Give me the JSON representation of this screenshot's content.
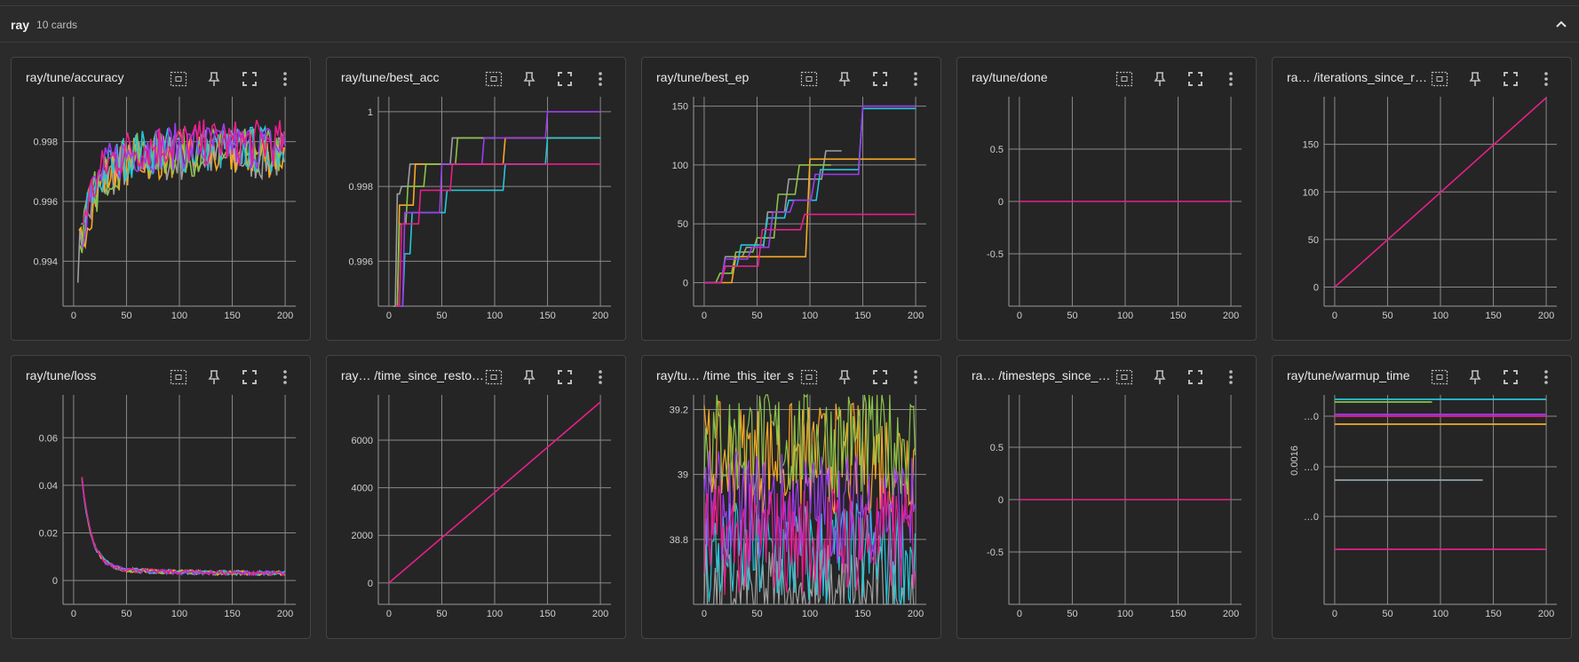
{
  "group": {
    "title": "ray",
    "count": "10 cards"
  },
  "colors": {
    "gray": "#9e9e9e",
    "orange": "#f9a825",
    "green": "#8bc34a",
    "cyan": "#26c6da",
    "purple": "#9c3cf0",
    "pink": "#e91e8c",
    "blueGray": "#90a4ae"
  },
  "cards": [
    {
      "title": "ray/tune/accuracy",
      "chart_data": {
        "type": "line",
        "xticks": [
          "0",
          "50",
          "100",
          "150",
          "200"
        ],
        "yticks": [
          "0.994",
          "0.996",
          "0.998"
        ],
        "ylim": [
          0.9925,
          0.9995
        ],
        "xlim": [
          -10,
          210
        ],
        "kind": "noisyrise"
      }
    },
    {
      "title": "ray/tune/best_acc",
      "chart_data": {
        "type": "line",
        "xticks": [
          "0",
          "50",
          "100",
          "150",
          "200"
        ],
        "yticks": [
          "0.996",
          "0.998",
          "1"
        ],
        "ylim": [
          0.9948,
          1.0004
        ],
        "xlim": [
          -10,
          210
        ],
        "kind": "steps"
      }
    },
    {
      "title": "ray/tune/best_ep",
      "chart_data": {
        "type": "line",
        "xticks": [
          "0",
          "50",
          "100",
          "150",
          "200"
        ],
        "yticks": [
          "0",
          "50",
          "100",
          "150"
        ],
        "ylim": [
          -20,
          158
        ],
        "xlim": [
          -10,
          210
        ],
        "kind": "epsteps"
      }
    },
    {
      "title": "ray/tune/done",
      "chart_data": {
        "type": "line",
        "xticks": [
          "0",
          "50",
          "100",
          "150",
          "200"
        ],
        "yticks": [
          "-0.5",
          "0",
          "0.5"
        ],
        "ylim": [
          -1,
          1
        ],
        "xlim": [
          -10,
          210
        ],
        "kind": "flat"
      }
    },
    {
      "title": "ra… /iterations_since_r…",
      "chart_data": {
        "type": "line",
        "xticks": [
          "0",
          "50",
          "100",
          "150",
          "200"
        ],
        "yticks": [
          "0",
          "50",
          "100",
          "150"
        ],
        "ylim": [
          -20,
          200
        ],
        "xlim": [
          -10,
          210
        ],
        "kind": "linear"
      }
    },
    {
      "title": "ray/tune/loss",
      "chart_data": {
        "type": "line",
        "xticks": [
          "0",
          "50",
          "100",
          "150",
          "200"
        ],
        "yticks": [
          "0",
          "0.02",
          "0.04",
          "0.06"
        ],
        "ylim": [
          -0.01,
          0.078
        ],
        "xlim": [
          -10,
          210
        ],
        "kind": "decay"
      }
    },
    {
      "title": "ray… /time_since_resto…",
      "chart_data": {
        "type": "line",
        "xticks": [
          "0",
          "50",
          "100",
          "150",
          "200"
        ],
        "yticks": [
          "0",
          "2000",
          "4000",
          "6000"
        ],
        "ylim": [
          -900,
          7900
        ],
        "xlim": [
          -10,
          210
        ],
        "kind": "linear2"
      }
    },
    {
      "title": "ray/tu… /time_this_iter_s",
      "chart_data": {
        "type": "line",
        "xticks": [
          "0",
          "50",
          "100",
          "150",
          "200"
        ],
        "yticks": [
          "38.8",
          "39",
          "39.2"
        ],
        "ylim": [
          38.6,
          39.245
        ],
        "xlim": [
          -10,
          210
        ],
        "kind": "noisy"
      }
    },
    {
      "title": "ra… /timesteps_since_…",
      "chart_data": {
        "type": "line",
        "xticks": [
          "0",
          "50",
          "100",
          "150",
          "200"
        ],
        "yticks": [
          "-0.5",
          "0",
          "0.5"
        ],
        "ylim": [
          -1,
          1
        ],
        "xlim": [
          -10,
          210
        ],
        "kind": "flat"
      }
    },
    {
      "title": "ray/tune/warmup_time",
      "chart_data": {
        "type": "line",
        "xticks": [
          "0",
          "50",
          "100",
          "150",
          "200"
        ],
        "yticks": [
          "…0",
          "…0",
          "…0"
        ],
        "ylabel_rot": "0.0016",
        "kind": "warmup"
      }
    }
  ]
}
